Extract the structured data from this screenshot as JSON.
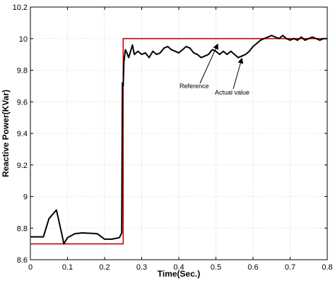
{
  "chart_data": {
    "type": "line",
    "xlabel": "Time(Sec.)",
    "ylabel": "Reactive Power(KVar)",
    "xlim": [
      0,
      0.8
    ],
    "ylim": [
      8.6,
      10.2
    ],
    "xticks": [
      "0",
      "0.1",
      "0.2",
      "0.3",
      "0.4",
      "0.5",
      "0.6",
      "0.7",
      "0.8"
    ],
    "yticks": [
      "8.6",
      "8.8",
      "9",
      "9.2",
      "9.4",
      "9.6",
      "9.8",
      "10",
      "10.2"
    ],
    "grid": true,
    "series": [
      {
        "role": "reference",
        "color": "#cc0000",
        "x": [
          0,
          0.25,
          0.25,
          0.8
        ],
        "y": [
          8.7,
          8.7,
          10.0,
          10.0
        ]
      },
      {
        "role": "actual",
        "color": "#000000",
        "x": [
          0,
          0.035,
          0.05,
          0.07,
          0.085,
          0.09,
          0.1,
          0.12,
          0.14,
          0.18,
          0.2,
          0.22,
          0.24,
          0.246,
          0.248,
          0.25,
          0.252,
          0.256,
          0.26,
          0.265,
          0.27,
          0.275,
          0.28,
          0.29,
          0.3,
          0.31,
          0.32,
          0.33,
          0.34,
          0.35,
          0.36,
          0.37,
          0.38,
          0.39,
          0.4,
          0.41,
          0.42,
          0.43,
          0.44,
          0.45,
          0.46,
          0.47,
          0.48,
          0.49,
          0.5,
          0.51,
          0.52,
          0.53,
          0.54,
          0.55,
          0.56,
          0.57,
          0.58,
          0.59,
          0.6,
          0.61,
          0.62,
          0.63,
          0.64,
          0.65,
          0.66,
          0.67,
          0.68,
          0.69,
          0.7,
          0.71,
          0.72,
          0.73,
          0.74,
          0.75,
          0.76,
          0.77,
          0.78,
          0.79,
          0.8
        ],
        "y": [
          8.745,
          8.745,
          8.86,
          8.915,
          8.76,
          8.7,
          8.74,
          8.765,
          8.77,
          8.765,
          8.73,
          8.73,
          8.74,
          8.77,
          9.72,
          9.7,
          9.85,
          9.93,
          9.91,
          9.88,
          9.92,
          9.96,
          9.9,
          9.92,
          9.9,
          9.91,
          9.88,
          9.92,
          9.9,
          9.91,
          9.94,
          9.95,
          9.93,
          9.92,
          9.91,
          9.93,
          9.95,
          9.94,
          9.91,
          9.9,
          9.88,
          9.89,
          9.9,
          9.93,
          9.92,
          9.9,
          9.92,
          9.9,
          9.92,
          9.9,
          9.88,
          9.89,
          9.9,
          9.92,
          9.95,
          9.97,
          9.99,
          10.0,
          10.01,
          10.02,
          10.01,
          10.0,
          10.02,
          10.0,
          9.99,
          10.0,
          9.99,
          10.01,
          9.99,
          10.0,
          10.01,
          10.0,
          9.99,
          10.0,
          10.0
        ]
      }
    ],
    "annotations": [
      {
        "text": "Reference",
        "points_to": "reference",
        "arrow_tip": [
          0.505,
          9.965
        ]
      },
      {
        "text": "Actual value",
        "points_to": "actual",
        "arrow_tip": [
          0.57,
          9.875
        ]
      }
    ]
  }
}
